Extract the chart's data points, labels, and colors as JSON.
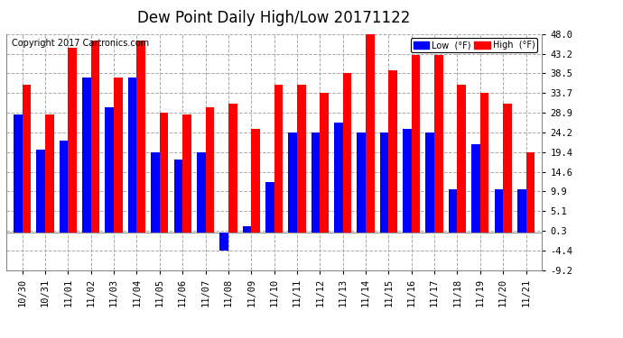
{
  "title": "Dew Point Daily High/Low 20171122",
  "copyright": "Copyright 2017 Cartronics.com",
  "categories": [
    "10/30",
    "10/31",
    "11/01",
    "11/02",
    "11/03",
    "11/04",
    "11/05",
    "11/06",
    "11/07",
    "11/08",
    "11/09",
    "11/10",
    "11/11",
    "11/12",
    "11/13",
    "11/14",
    "11/15",
    "11/16",
    "11/17",
    "11/18",
    "11/19",
    "11/20",
    "11/21"
  ],
  "high_values": [
    35.6,
    28.4,
    44.6,
    46.4,
    37.4,
    46.4,
    28.9,
    28.4,
    30.2,
    31.1,
    25.0,
    35.6,
    35.6,
    33.8,
    38.5,
    48.0,
    39.2,
    42.8,
    42.8,
    35.6,
    33.8,
    31.1,
    19.4
  ],
  "low_values": [
    28.4,
    20.0,
    22.1,
    37.4,
    30.2,
    37.4,
    19.4,
    17.6,
    19.4,
    -4.4,
    1.4,
    12.2,
    24.2,
    24.2,
    26.6,
    24.2,
    24.2,
    25.0,
    24.2,
    10.4,
    21.2,
    10.4,
    10.4
  ],
  "ylim_min": -9.2,
  "ylim_max": 48.0,
  "ytick_values": [
    -9.2,
    -4.4,
    0.3,
    5.1,
    9.9,
    14.6,
    19.4,
    24.2,
    28.9,
    33.7,
    38.5,
    43.2,
    48.0
  ],
  "ytick_labels": [
    "-9.2",
    "-4.4",
    "0.3",
    "5.1",
    "9.9",
    "14.6",
    "19.4",
    "24.2",
    "28.9",
    "33.7",
    "38.5",
    "43.2",
    "48.0"
  ],
  "bar_width": 0.38,
  "high_color": "#FF0000",
  "low_color": "#0000FF",
  "bg_color": "#FFFFFF",
  "grid_color": "#AAAAAA",
  "title_fontsize": 12,
  "tick_fontsize": 7.5,
  "copyright_fontsize": 7,
  "legend_low_label": "Low  (°F)",
  "legend_high_label": "High  (°F)"
}
